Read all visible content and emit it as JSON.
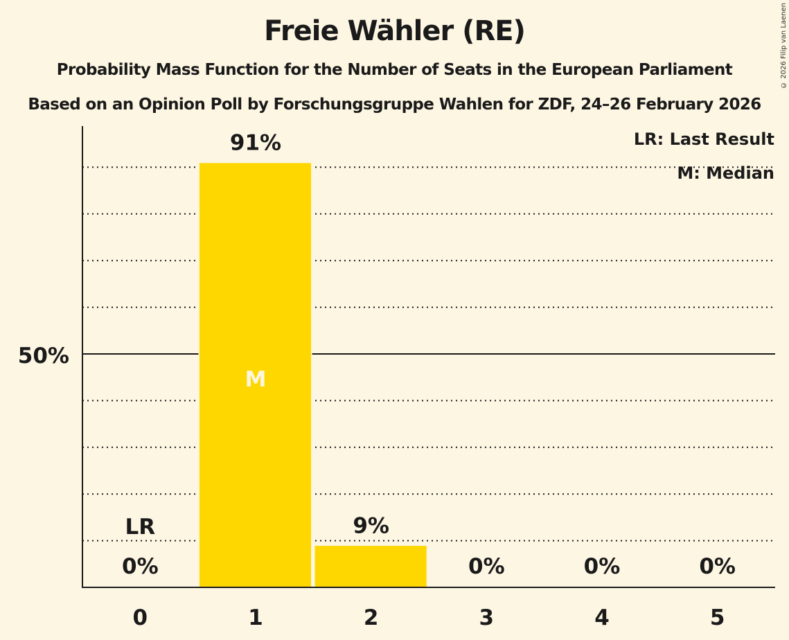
{
  "header": {
    "title": "Freie Wähler (RE)",
    "subtitle": "Probability Mass Function for the Number of Seats in the European Parliament",
    "poll_info": "Based on an Opinion Poll by Forschungsgruppe Wahlen for ZDF, 24–26 February 2026",
    "copyright": "© 2026 Filip van Laenen"
  },
  "legend": {
    "last_result": "LR: Last Result",
    "median": "M: Median"
  },
  "colors": {
    "background": "#fdf6e3",
    "bar": "#ffd700",
    "text": "#1a1a1a",
    "median_marker": "#fdf6e3"
  },
  "chart_data": {
    "type": "bar",
    "title": "Freie Wähler (RE)",
    "subtitle": "Probability Mass Function for the Number of Seats in the European Parliament",
    "xlabel": "",
    "ylabel": "",
    "categories": [
      "0",
      "1",
      "2",
      "3",
      "4",
      "5"
    ],
    "values": [
      0,
      91,
      9,
      0,
      0,
      0
    ],
    "value_labels": [
      "0%",
      "91%",
      "9%",
      "0%",
      "0%",
      "0%"
    ],
    "ylim": [
      0,
      100
    ],
    "y_tick_labels": [
      "50%"
    ],
    "grid": "dotted lines every 10%, solid line at 50%",
    "last_result_seat": 0,
    "last_result_label": "LR",
    "median_seat": 1,
    "median_label": "M",
    "legend_position": "top-right"
  },
  "axis": {
    "y_tick": "50%"
  }
}
